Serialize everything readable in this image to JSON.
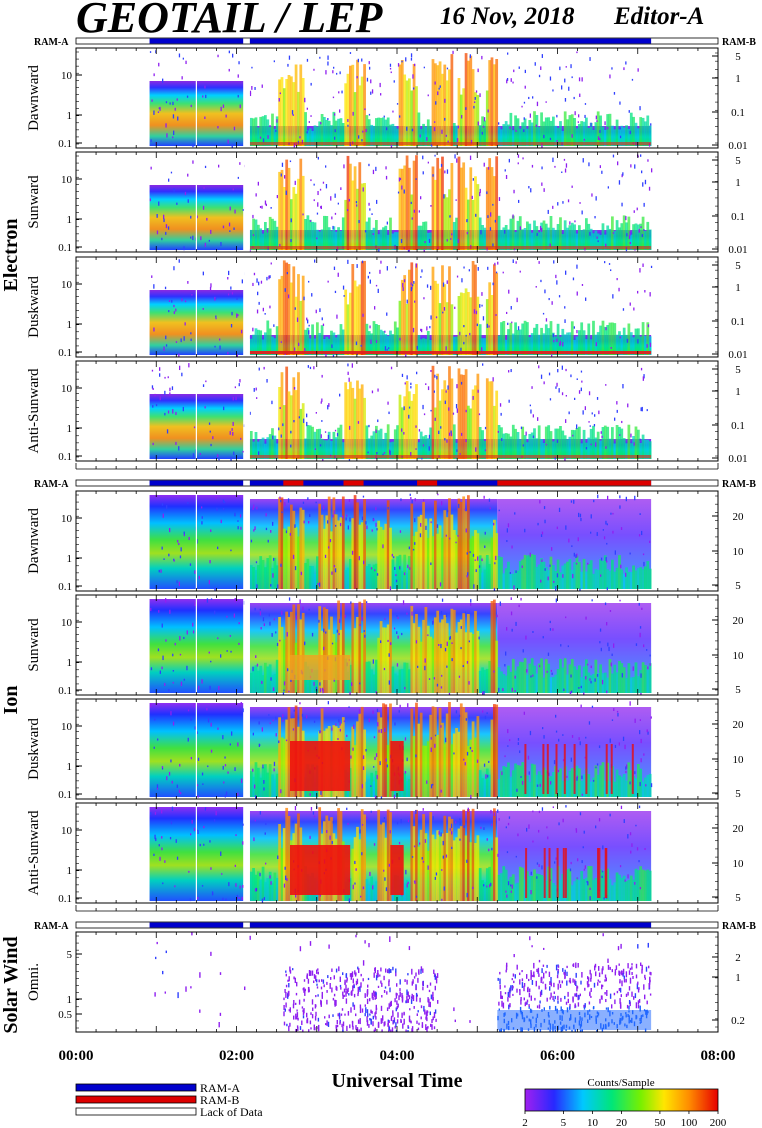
{
  "header": {
    "title": "GEOTAIL / LEP",
    "date": "16 Nov, 2018",
    "editor": "Editor-A"
  },
  "colors": {
    "ram_a": "#0000cc",
    "ram_b": "#dd0000",
    "lack_of_data": "#ffffff"
  },
  "chart_data": {
    "type": "heatmap",
    "xlabel": "Universal Time",
    "x_ticks": [
      "00:00",
      "02:00",
      "04:00",
      "06:00",
      "08:00"
    ],
    "xlim": [
      "00:00",
      "08:00"
    ],
    "groups": [
      {
        "name": "Electron",
        "ram_left": "RAM-A",
        "ram_right": "RAM-B",
        "panels": [
          {
            "label": "Dawnward",
            "left_ticks": [
              "10",
              "1",
              "0.1"
            ],
            "right_ticks": [
              "5",
              "1",
              "0.1",
              "0.01"
            ]
          },
          {
            "label": "Sunward",
            "left_ticks": [
              "10",
              "1",
              "0.1"
            ],
            "right_ticks": [
              "5",
              "1",
              "0.1",
              "0.01"
            ]
          },
          {
            "label": "Duskward",
            "left_ticks": [
              "10",
              "1",
              "0.1"
            ],
            "right_ticks": [
              "5",
              "1",
              "0.1",
              "0.01"
            ]
          },
          {
            "label": "Anti-Sunward",
            "left_ticks": [
              "10",
              "1",
              "0.1"
            ],
            "right_ticks": [
              "5",
              "1",
              "0.1",
              "0.01"
            ]
          }
        ]
      },
      {
        "name": "Ion",
        "ram_left": "RAM-A",
        "ram_right": "RAM-B",
        "panels": [
          {
            "label": "Dawnward",
            "left_ticks": [
              "10",
              "1",
              "0.1"
            ],
            "right_ticks": [
              "20",
              "10",
              "5"
            ]
          },
          {
            "label": "Sunward",
            "left_ticks": [
              "10",
              "1",
              "0.1"
            ],
            "right_ticks": [
              "20",
              "10",
              "5"
            ]
          },
          {
            "label": "Duskward",
            "left_ticks": [
              "10",
              "1",
              "0.1"
            ],
            "right_ticks": [
              "20",
              "10",
              "5"
            ]
          },
          {
            "label": "Anti-Sunward",
            "left_ticks": [
              "10",
              "1",
              "0.1"
            ],
            "right_ticks": [
              "20",
              "10",
              "5"
            ]
          }
        ]
      },
      {
        "name": "Solar Wind",
        "ram_left": "RAM-A",
        "ram_right": "RAM-B",
        "panels": [
          {
            "label": "Omni.",
            "left_ticks": [
              "5",
              "1",
              "0.5"
            ],
            "right_ticks": [
              "2",
              "1",
              "0.2"
            ]
          }
        ]
      }
    ],
    "ram_bar_segments": [
      {
        "from": "00:55",
        "to": "02:05",
        "state": "RAM-A"
      },
      {
        "from": "02:10",
        "to": "07:10",
        "state": "RAM-A"
      }
    ],
    "ion_ram_b_intervals": [
      [
        "02:35",
        "02:50"
      ],
      [
        "03:20",
        "03:35"
      ],
      [
        "04:15",
        "04:30"
      ],
      [
        "05:15",
        "07:10"
      ]
    ],
    "legend": {
      "items": [
        "RAM-A",
        "RAM-B",
        "Lack of Data"
      ]
    },
    "colorbar": {
      "title": "Counts/Sample",
      "ticks": [
        "2",
        "5",
        "10",
        "20",
        "50",
        "100",
        "200"
      ],
      "range": [
        2,
        200
      ],
      "scale": "log"
    }
  }
}
